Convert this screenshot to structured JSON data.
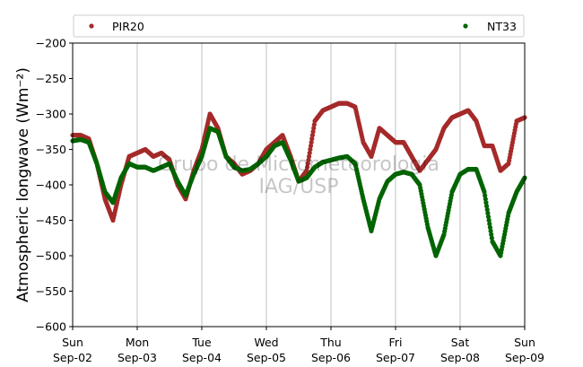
{
  "chart_data": {
    "type": "scatter",
    "ylabel": "Atmospheric longwave (Wm⁻²)",
    "ylim": [
      -600,
      -200
    ],
    "yticks": [
      -200,
      -250,
      -300,
      -350,
      -400,
      -450,
      -500,
      -550,
      -600
    ],
    "xlim": [
      "2019-09-02",
      "2019-09-09"
    ],
    "xticks": [
      {
        "day": "Sun",
        "date": "Sep-02"
      },
      {
        "day": "Mon",
        "date": "Sep-03"
      },
      {
        "day": "Tue",
        "date": "Sep-04"
      },
      {
        "day": "Wed",
        "date": "Sep-05"
      },
      {
        "day": "Thu",
        "date": "Sep-06"
      },
      {
        "day": "Fri",
        "date": "Sep-07"
      },
      {
        "day": "Sat",
        "date": "Sep-08"
      },
      {
        "day": "Sun",
        "date": "Sep-09"
      }
    ],
    "grid": "vertical",
    "legend_placement": "top",
    "watermark": [
      "Grupo de Micrometeorologia",
      "IAG/USP"
    ],
    "series": [
      {
        "name": "PIR20",
        "color": "#a52a2a",
        "points": [
          [
            "2019-09-02 00:00",
            -330
          ],
          [
            "2019-09-02 03:00",
            -330
          ],
          [
            "2019-09-02 06:00",
            -335
          ],
          [
            "2019-09-02 09:00",
            -370
          ],
          [
            "2019-09-02 12:00",
            -420
          ],
          [
            "2019-09-02 15:00",
            -450
          ],
          [
            "2019-09-02 18:00",
            -400
          ],
          [
            "2019-09-02 21:00",
            -360
          ],
          [
            "2019-09-03 00:00",
            -355
          ],
          [
            "2019-09-03 03:00",
            -350
          ],
          [
            "2019-09-03 06:00",
            -360
          ],
          [
            "2019-09-03 09:00",
            -355
          ],
          [
            "2019-09-03 12:00",
            -365
          ],
          [
            "2019-09-03 15:00",
            -400
          ],
          [
            "2019-09-03 18:00",
            -420
          ],
          [
            "2019-09-03 21:00",
            -380
          ],
          [
            "2019-09-04 00:00",
            -350
          ],
          [
            "2019-09-04 03:00",
            -300
          ],
          [
            "2019-09-04 06:00",
            -320
          ],
          [
            "2019-09-04 09:00",
            -360
          ],
          [
            "2019-09-04 12:00",
            -370
          ],
          [
            "2019-09-04 15:00",
            -385
          ],
          [
            "2019-09-04 18:00",
            -380
          ],
          [
            "2019-09-04 21:00",
            -370
          ],
          [
            "2019-09-05 00:00",
            -350
          ],
          [
            "2019-09-05 03:00",
            -340
          ],
          [
            "2019-09-05 06:00",
            -330
          ],
          [
            "2019-09-05 09:00",
            -360
          ],
          [
            "2019-09-05 12:00",
            -395
          ],
          [
            "2019-09-05 15:00",
            -380
          ],
          [
            "2019-09-05 18:00",
            -310
          ],
          [
            "2019-09-05 21:00",
            -295
          ],
          [
            "2019-09-06 00:00",
            -290
          ],
          [
            "2019-09-06 03:00",
            -285
          ],
          [
            "2019-09-06 06:00",
            -285
          ],
          [
            "2019-09-06 09:00",
            -290
          ],
          [
            "2019-09-06 12:00",
            -340
          ],
          [
            "2019-09-06 15:00",
            -360
          ],
          [
            "2019-09-06 18:00",
            -320
          ],
          [
            "2019-09-06 21:00",
            -330
          ],
          [
            "2019-09-07 00:00",
            -340
          ],
          [
            "2019-09-07 03:00",
            -340
          ],
          [
            "2019-09-07 06:00",
            -360
          ],
          [
            "2019-09-07 09:00",
            -380
          ],
          [
            "2019-09-07 12:00",
            -365
          ],
          [
            "2019-09-07 15:00",
            -350
          ],
          [
            "2019-09-07 18:00",
            -320
          ],
          [
            "2019-09-07 21:00",
            -305
          ],
          [
            "2019-09-08 00:00",
            -300
          ],
          [
            "2019-09-08 03:00",
            -295
          ],
          [
            "2019-09-08 06:00",
            -310
          ],
          [
            "2019-09-08 09:00",
            -345
          ],
          [
            "2019-09-08 12:00",
            -345
          ],
          [
            "2019-09-08 15:00",
            -380
          ],
          [
            "2019-09-08 18:00",
            -370
          ],
          [
            "2019-09-08 21:00",
            -310
          ],
          [
            "2019-09-09 00:00",
            -305
          ]
        ]
      },
      {
        "name": "NT33",
        "color": "#006400",
        "points": [
          [
            "2019-09-02 00:00",
            -338
          ],
          [
            "2019-09-02 03:00",
            -336
          ],
          [
            "2019-09-02 06:00",
            -340
          ],
          [
            "2019-09-02 09:00",
            -370
          ],
          [
            "2019-09-02 12:00",
            -410
          ],
          [
            "2019-09-02 15:00",
            -425
          ],
          [
            "2019-09-02 18:00",
            -390
          ],
          [
            "2019-09-02 21:00",
            -370
          ],
          [
            "2019-09-03 00:00",
            -375
          ],
          [
            "2019-09-03 03:00",
            -375
          ],
          [
            "2019-09-03 06:00",
            -380
          ],
          [
            "2019-09-03 09:00",
            -375
          ],
          [
            "2019-09-03 12:00",
            -370
          ],
          [
            "2019-09-03 15:00",
            -395
          ],
          [
            "2019-09-03 18:00",
            -415
          ],
          [
            "2019-09-03 21:00",
            -385
          ],
          [
            "2019-09-04 00:00",
            -360
          ],
          [
            "2019-09-04 03:00",
            -320
          ],
          [
            "2019-09-04 06:00",
            -325
          ],
          [
            "2019-09-04 09:00",
            -360
          ],
          [
            "2019-09-04 12:00",
            -375
          ],
          [
            "2019-09-04 15:00",
            -380
          ],
          [
            "2019-09-04 18:00",
            -378
          ],
          [
            "2019-09-04 21:00",
            -370
          ],
          [
            "2019-09-05 00:00",
            -360
          ],
          [
            "2019-09-05 03:00",
            -345
          ],
          [
            "2019-09-05 06:00",
            -340
          ],
          [
            "2019-09-05 09:00",
            -365
          ],
          [
            "2019-09-05 12:00",
            -395
          ],
          [
            "2019-09-05 15:00",
            -390
          ],
          [
            "2019-09-05 18:00",
            -375
          ],
          [
            "2019-09-05 21:00",
            -368
          ],
          [
            "2019-09-06 00:00",
            -365
          ],
          [
            "2019-09-06 03:00",
            -362
          ],
          [
            "2019-09-06 06:00",
            -360
          ],
          [
            "2019-09-06 09:00",
            -370
          ],
          [
            "2019-09-06 12:00",
            -420
          ],
          [
            "2019-09-06 15:00",
            -465
          ],
          [
            "2019-09-06 18:00",
            -420
          ],
          [
            "2019-09-06 21:00",
            -395
          ],
          [
            "2019-09-07 00:00",
            -385
          ],
          [
            "2019-09-07 03:00",
            -382
          ],
          [
            "2019-09-07 06:00",
            -385
          ],
          [
            "2019-09-07 09:00",
            -400
          ],
          [
            "2019-09-07 12:00",
            -460
          ],
          [
            "2019-09-07 15:00",
            -500
          ],
          [
            "2019-09-07 18:00",
            -470
          ],
          [
            "2019-09-07 21:00",
            -410
          ],
          [
            "2019-09-08 00:00",
            -385
          ],
          [
            "2019-09-08 03:00",
            -378
          ],
          [
            "2019-09-08 06:00",
            -378
          ],
          [
            "2019-09-08 09:00",
            -410
          ],
          [
            "2019-09-08 12:00",
            -480
          ],
          [
            "2019-09-08 15:00",
            -500
          ],
          [
            "2019-09-08 18:00",
            -440
          ],
          [
            "2019-09-08 21:00",
            -410
          ],
          [
            "2019-09-09 00:00",
            -390
          ]
        ]
      }
    ]
  }
}
